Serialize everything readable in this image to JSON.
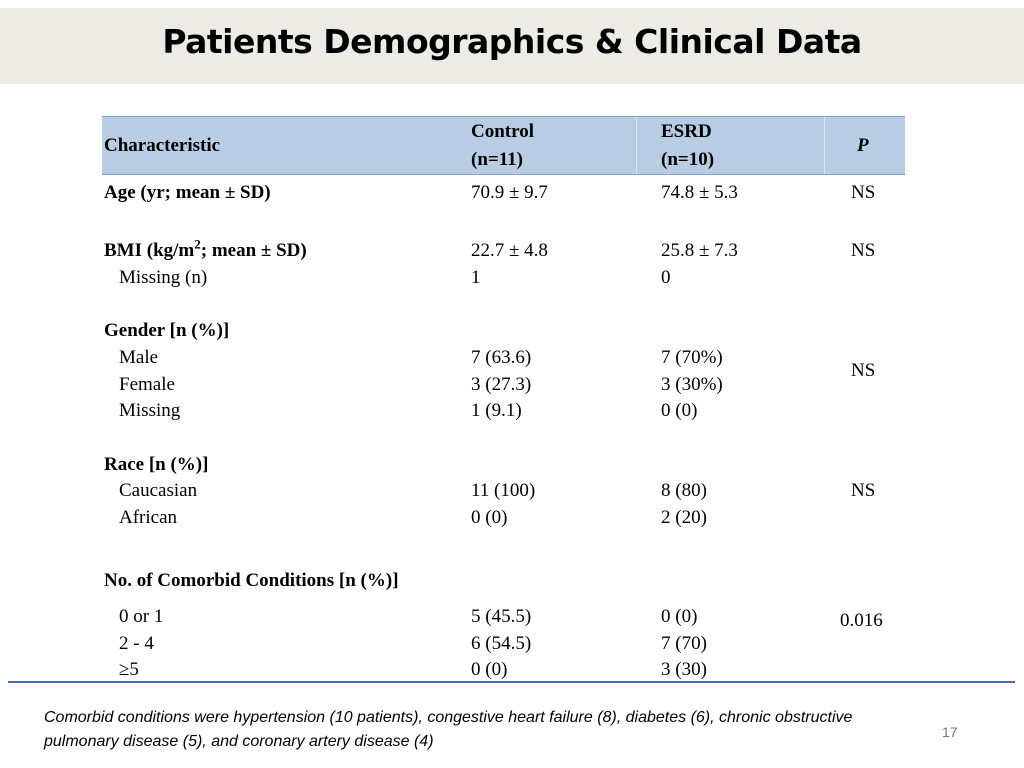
{
  "slide": {
    "title": "Patients Demographics & Clinical Data",
    "page_number": "17",
    "footnote": "Comorbid conditions were hypertension (10 patients), congestive heart failure (8), diabetes (6), chronic obstructive pulmonary disease (5), and coronary artery disease (4)"
  },
  "table": {
    "header": {
      "characteristic": "Characteristic",
      "control": "Control",
      "control_n": "(n=11)",
      "esrd": "ESRD",
      "esrd_n": "(n=10)",
      "p": "P"
    },
    "age": {
      "label": "Age (yr; mean ± SD)",
      "control": "70.9 ± 9.7",
      "esrd": "74.8 ± 5.3",
      "p": "NS"
    },
    "bmi": {
      "label_pre": "BMI (kg/m",
      "label_sup": "2",
      "label_post": "; mean ± SD)",
      "control": "22.7 ± 4.8",
      "esrd": "25.8 ± 7.3",
      "p": "NS",
      "missing_label": "Missing (n)",
      "missing_control": "1",
      "missing_esrd": "0"
    },
    "gender": {
      "label": "Gender [n (%)]",
      "p": "NS",
      "rows": [
        {
          "label": "Male",
          "control": "7 (63.6)",
          "esrd": "7 (70%)"
        },
        {
          "label": "Female",
          "control": "3 (27.3)",
          "esrd": "3 (30%)"
        },
        {
          "label": "Missing",
          "control": "1 (9.1)",
          "esrd": "0 (0)"
        }
      ]
    },
    "race": {
      "label": "Race [n (%)]",
      "p": "NS",
      "rows": [
        {
          "label": "Caucasian",
          "control": "11 (100)",
          "esrd": "8 (80)"
        },
        {
          "label": "African",
          "control": "0 (0)",
          "esrd": "2 (20)"
        }
      ]
    },
    "comorbid": {
      "label": "No. of Comorbid Conditions [n (%)]",
      "p": "0.016",
      "rows": [
        {
          "label": "0 or 1",
          "control": "5 (45.5)",
          "esrd": "0 (0)"
        },
        {
          "label": "2 - 4",
          "control": "6 (54.5)",
          "esrd": "7 (70)"
        },
        {
          "label": "≥5",
          "control": "0 (0)",
          "esrd": "3 (30)"
        }
      ]
    }
  }
}
